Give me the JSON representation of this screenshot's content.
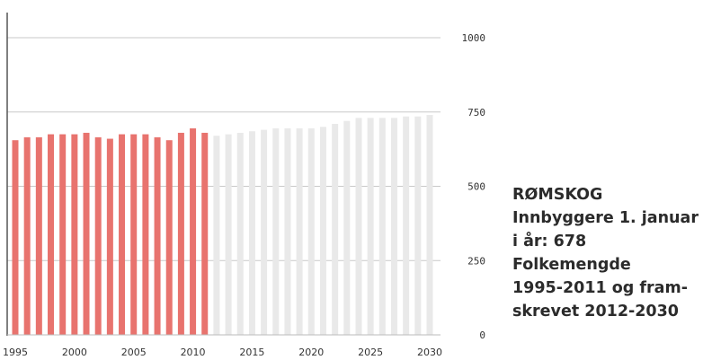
{
  "caption": {
    "line1": "RØMSKOG",
    "line2": "Innbyggere 1. januar",
    "line3": "i år: 678",
    "line4": "Folkemengde",
    "line5": "1995-2011 og fram-",
    "line6": "skrevet 2012-2030"
  },
  "colors": {
    "historical": "#e8736e",
    "projected": "#e9e9e9",
    "grid": "#c8c8c8",
    "axis": "#555555"
  },
  "chart_data": {
    "type": "bar",
    "x": [
      1995,
      1996,
      1997,
      1998,
      1999,
      2000,
      2001,
      2002,
      2003,
      2004,
      2005,
      2006,
      2007,
      2008,
      2009,
      2010,
      2011,
      2012,
      2013,
      2014,
      2015,
      2016,
      2017,
      2018,
      2019,
      2020,
      2021,
      2022,
      2023,
      2024,
      2025,
      2026,
      2027,
      2028,
      2029,
      2030
    ],
    "series": [
      {
        "segment": "historical",
        "x": [
          1995,
          1996,
          1997,
          1998,
          1999,
          2000,
          2001,
          2002,
          2003,
          2004,
          2005,
          2006,
          2007,
          2008,
          2009,
          2010,
          2011
        ],
        "values": [
          655,
          665,
          665,
          675,
          675,
          675,
          680,
          665,
          660,
          675,
          675,
          675,
          665,
          655,
          680,
          695,
          680
        ]
      },
      {
        "segment": "projected",
        "x": [
          2012,
          2013,
          2014,
          2015,
          2016,
          2017,
          2018,
          2019,
          2020,
          2021,
          2022,
          2023,
          2024,
          2025,
          2026,
          2027,
          2028,
          2029,
          2030
        ],
        "values": [
          670,
          675,
          680,
          685,
          690,
          695,
          695,
          695,
          695,
          700,
          710,
          720,
          730,
          730,
          730,
          730,
          735,
          735,
          740
        ]
      }
    ],
    "x_ticks": [
      "1995",
      "2000",
      "2005",
      "2010",
      "2015",
      "2020",
      "2025",
      "2030"
    ],
    "y_ticks": [
      "0",
      "250",
      "500",
      "750",
      "1000"
    ],
    "ylim": [
      0,
      1000
    ],
    "grid": true,
    "y_axis_side": "right"
  }
}
